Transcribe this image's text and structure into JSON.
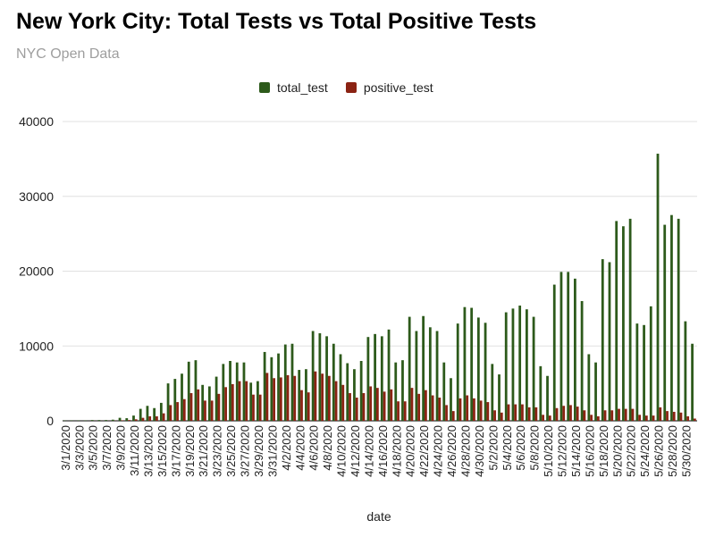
{
  "chart_data": {
    "type": "bar",
    "title": "New York City: Total Tests vs Total Positive Tests",
    "subtitle": "NYC Open Data",
    "xlabel": "date",
    "ylabel": "",
    "ylim": [
      0,
      40000
    ],
    "yticks": [
      "0",
      "10000",
      "20000",
      "30000",
      "40000"
    ],
    "grid": true,
    "legend_position": "top",
    "categories": [
      "3/1/2020",
      "3/2/2020",
      "3/3/2020",
      "3/4/2020",
      "3/5/2020",
      "3/6/2020",
      "3/7/2020",
      "3/8/2020",
      "3/9/2020",
      "3/10/2020",
      "3/11/2020",
      "3/12/2020",
      "3/13/2020",
      "3/14/2020",
      "3/15/2020",
      "3/16/2020",
      "3/17/2020",
      "3/18/2020",
      "3/19/2020",
      "3/20/2020",
      "3/21/2020",
      "3/22/2020",
      "3/23/2020",
      "3/24/2020",
      "3/25/2020",
      "3/26/2020",
      "3/27/2020",
      "3/28/2020",
      "3/29/2020",
      "3/30/2020",
      "3/31/2020",
      "4/1/2020",
      "4/2/2020",
      "4/3/2020",
      "4/4/2020",
      "4/5/2020",
      "4/6/2020",
      "4/7/2020",
      "4/8/2020",
      "4/9/2020",
      "4/10/2020",
      "4/11/2020",
      "4/12/2020",
      "4/13/2020",
      "4/14/2020",
      "4/15/2020",
      "4/16/2020",
      "4/17/2020",
      "4/18/2020",
      "4/19/2020",
      "4/20/2020",
      "4/21/2020",
      "4/22/2020",
      "4/23/2020",
      "4/24/2020",
      "4/25/2020",
      "4/26/2020",
      "4/27/2020",
      "4/28/2020",
      "4/29/2020",
      "4/30/2020",
      "5/1/2020",
      "5/2/2020",
      "5/3/2020",
      "5/4/2020",
      "5/5/2020",
      "5/6/2020",
      "5/7/2020",
      "5/8/2020",
      "5/9/2020",
      "5/10/2020",
      "5/11/2020",
      "5/12/2020",
      "5/13/2020",
      "5/14/2020",
      "5/15/2020",
      "5/16/2020",
      "5/17/2020",
      "5/18/2020",
      "5/19/2020",
      "5/20/2020",
      "5/21/2020",
      "5/22/2020",
      "5/23/2020",
      "5/24/2020",
      "5/25/2020",
      "5/26/2020",
      "5/27/2020",
      "5/28/2020",
      "5/29/2020",
      "5/30/2020",
      "5/31/2020"
    ],
    "xtick_labels": [
      "3/1/2020",
      "3/3/2020",
      "3/5/2020",
      "3/7/2020",
      "3/9/2020",
      "3/11/2020",
      "3/13/2020",
      "3/15/2020",
      "3/17/2020",
      "3/19/2020",
      "3/21/2020",
      "3/23/2020",
      "3/25/2020",
      "3/27/2020",
      "3/29/2020",
      "3/31/2020",
      "4/2/2020",
      "4/4/2020",
      "4/6/2020",
      "4/8/2020",
      "4/10/2020",
      "4/12/2020",
      "4/14/2020",
      "4/16/2020",
      "4/18/2020",
      "4/20/2020",
      "4/22/2020",
      "4/24/2020",
      "4/26/2020",
      "4/28/2020",
      "4/30/2020",
      "5/2/2020",
      "5/4/2020",
      "5/6/2020",
      "5/8/2020",
      "5/10/2020",
      "5/12/2020",
      "5/14/2020",
      "5/16/2020",
      "5/18/2020",
      "5/20/2020",
      "5/22/2020",
      "5/24/2020",
      "5/26/2020",
      "5/28/2020",
      "5/30/2020"
    ],
    "series": [
      {
        "name": "total_test",
        "color": "#2d5a1b",
        "values": [
          50,
          50,
          50,
          50,
          100,
          100,
          100,
          150,
          400,
          350,
          700,
          1600,
          2000,
          1700,
          2400,
          5000,
          5600,
          6300,
          7900,
          8100,
          4800,
          4600,
          5900,
          7600,
          8000,
          7800,
          7800,
          5100,
          5300,
          9200,
          8500,
          9000,
          10200,
          10300,
          6800,
          6900,
          12000,
          11700,
          11300,
          10300,
          8900,
          7700,
          6900,
          8000,
          11200,
          11600,
          11300,
          12200,
          7800,
          8100,
          13900,
          12000,
          14000,
          12500,
          12000,
          7800,
          5700,
          13000,
          15200,
          15100,
          13800,
          13100,
          7600,
          6200,
          14500,
          15000,
          15400,
          14900,
          13900,
          7300,
          6000,
          18200,
          19900,
          19900,
          19000,
          16000,
          8900,
          7800,
          21600,
          21200,
          26700,
          26000,
          27000,
          13000,
          12800,
          15300,
          35700,
          26200,
          27500,
          27000,
          13300,
          10300
        ]
      },
      {
        "name": "positive_test",
        "color": "#8b2313",
        "values": [
          0,
          0,
          0,
          0,
          10,
          10,
          10,
          20,
          60,
          100,
          200,
          400,
          600,
          600,
          1000,
          2100,
          2500,
          2900,
          3700,
          4200,
          2700,
          2700,
          3600,
          4500,
          4900,
          5300,
          5300,
          3500,
          3500,
          6400,
          5700,
          5800,
          6100,
          6000,
          4100,
          3800,
          6600,
          6300,
          6000,
          5300,
          4800,
          3700,
          3100,
          3700,
          4600,
          4400,
          3900,
          4200,
          2600,
          2600,
          4400,
          3600,
          4100,
          3400,
          3100,
          2100,
          1300,
          3000,
          3400,
          3000,
          2700,
          2500,
          1400,
          1100,
          2200,
          2200,
          2200,
          1800,
          1800,
          800,
          700,
          1700,
          2000,
          2100,
          1900,
          1400,
          800,
          600,
          1400,
          1400,
          1600,
          1600,
          1600,
          800,
          700,
          700,
          1800,
          1300,
          1200,
          1100,
          600,
          300
        ]
      }
    ]
  }
}
